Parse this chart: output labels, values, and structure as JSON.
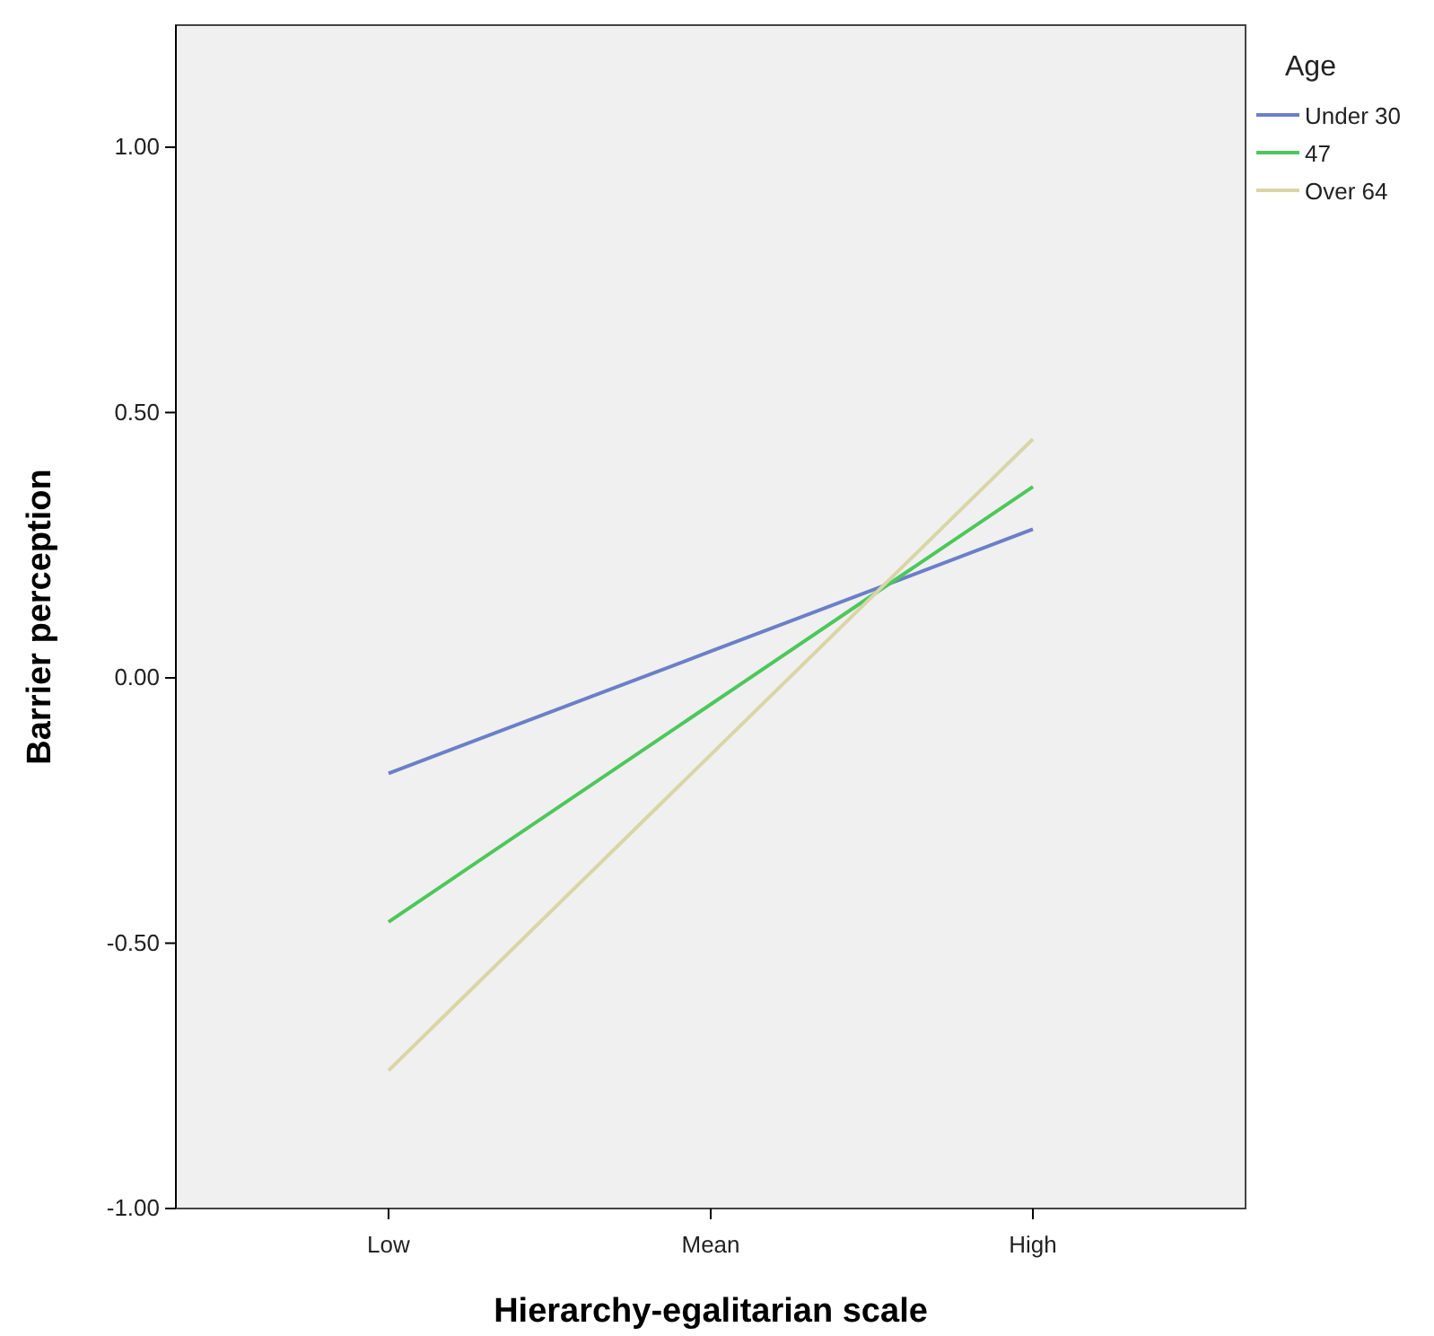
{
  "chart_data": {
    "type": "line",
    "xlabel": "Hierarchy-egalitarian scale",
    "ylabel": "Barrier perception",
    "legend_title": "Age",
    "legend": "top right",
    "grid": false,
    "marker": "none",
    "line_style": "solid",
    "categories": [
      "Low",
      "Mean",
      "High"
    ],
    "ylim": [
      -1,
      1.23
    ],
    "yticks": [
      {
        "value": -1,
        "label": "-1.00"
      },
      {
        "value": -0.5,
        "label": "-0.50"
      },
      {
        "value": 0,
        "label": "0.00"
      },
      {
        "value": 0.5,
        "label": "0.50"
      },
      {
        "value": 1,
        "label": "1.00"
      }
    ],
    "series": [
      {
        "name": "Under 30",
        "color": "#6b7fc9",
        "values": [
          -0.18,
          0.05,
          0.28
        ]
      },
      {
        "name": "47",
        "color": "#4dc75b",
        "values": [
          -0.46,
          -0.05,
          0.36
        ]
      },
      {
        "name": "Over 64",
        "color": "#d9d5a6",
        "values": [
          -0.74,
          -0.145,
          0.45
        ]
      }
    ]
  }
}
